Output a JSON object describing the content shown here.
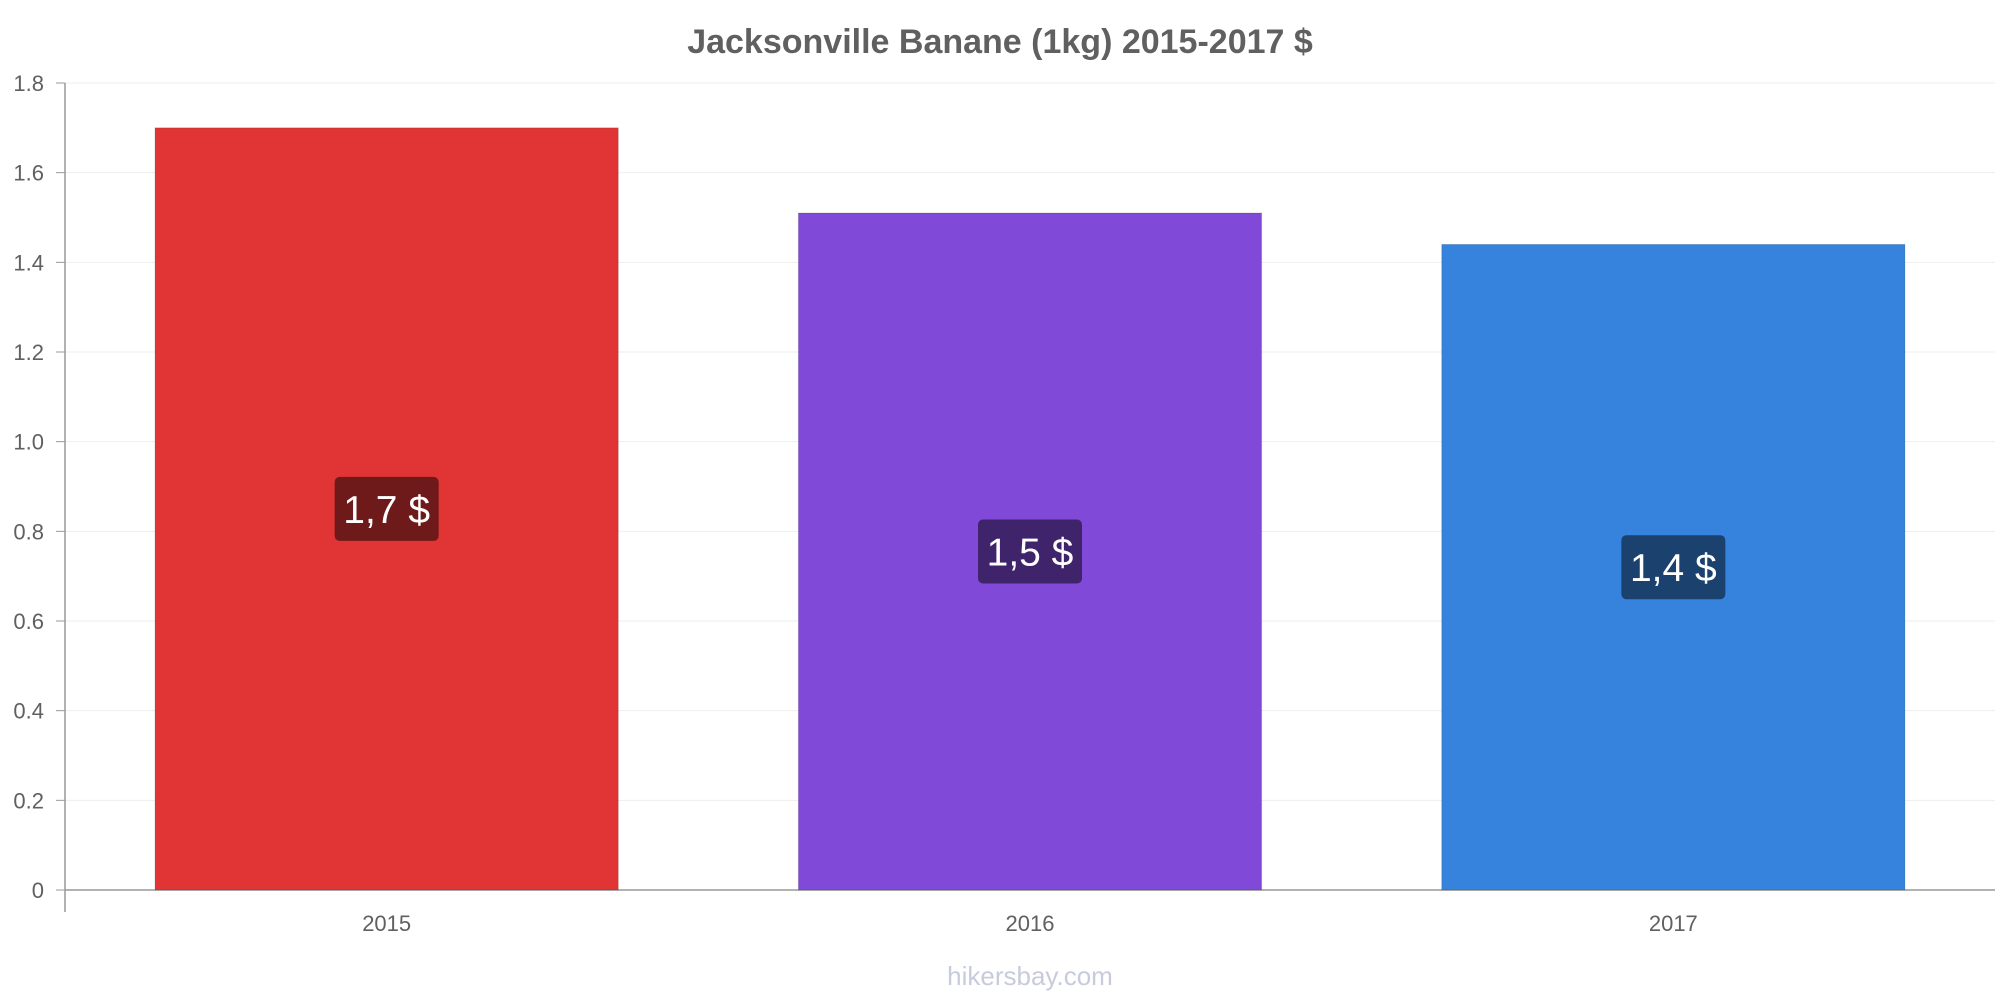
{
  "chart_data": {
    "type": "bar",
    "title": "Jacksonville Banane (1kg) 2015-2017 $",
    "categories": [
      "2015",
      "2016",
      "2017"
    ],
    "values": [
      1.7,
      1.51,
      1.44
    ],
    "data_labels": [
      "1,7 $",
      "1,5 $",
      "1,4 $"
    ],
    "bar_colors": [
      "#e13535",
      "#8049d8",
      "#3683de"
    ],
    "label_box_colors": [
      "#6e1a1a",
      "#3f246b",
      "#1b416e"
    ],
    "ylim": [
      0,
      1.8
    ],
    "yticks": [
      0,
      0.2,
      0.4,
      0.6,
      0.8,
      1.0,
      1.2,
      1.4,
      1.6,
      1.8
    ],
    "ytick_labels": [
      "0",
      "0.2",
      "0.4",
      "0.6",
      "0.8",
      "1.0",
      "1.2",
      "1.4",
      "1.6",
      "1.8"
    ],
    "xlabel": "",
    "ylabel": "",
    "grid": true,
    "legend": false
  },
  "footer": {
    "watermark": "hikersbay.com"
  }
}
